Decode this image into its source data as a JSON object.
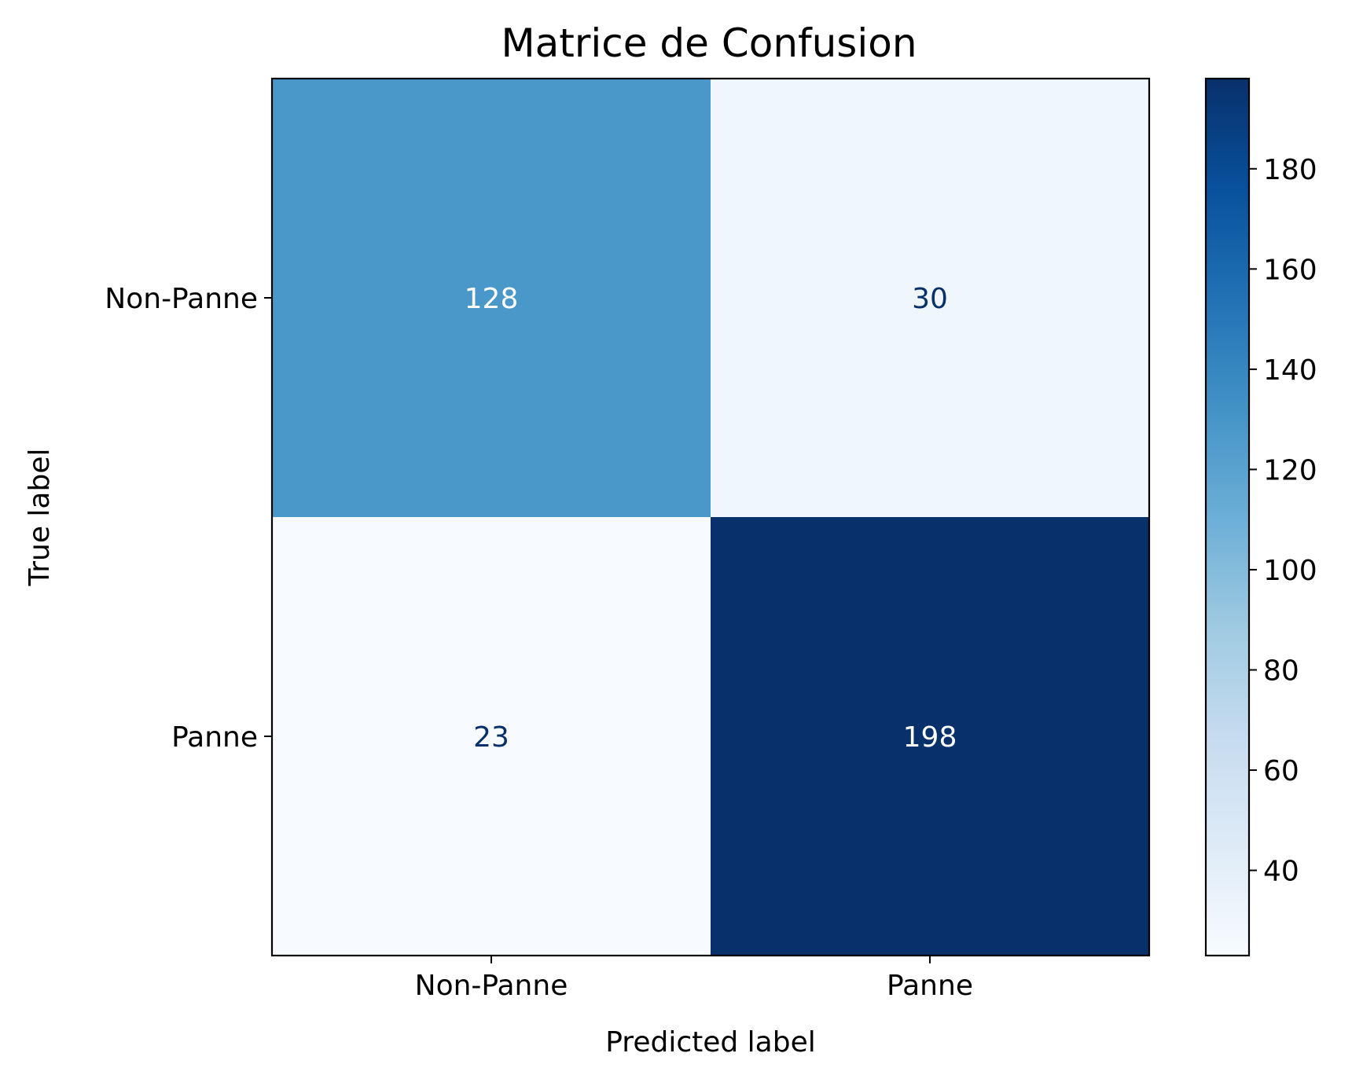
{
  "chart_data": {
    "type": "heatmap",
    "title": "Matrice de Confusion",
    "xlabel": "Predicted label",
    "ylabel": "True label",
    "x_categories": [
      "Non-Panne",
      "Panne"
    ],
    "y_categories": [
      "Non-Panne",
      "Panne"
    ],
    "values": [
      [
        128,
        30
      ],
      [
        23,
        198
      ]
    ],
    "colormap": "Blues",
    "colorbar": {
      "vmin": 23,
      "vmax": 198,
      "ticks": [
        40,
        60,
        80,
        100,
        120,
        140,
        160,
        180
      ]
    }
  }
}
